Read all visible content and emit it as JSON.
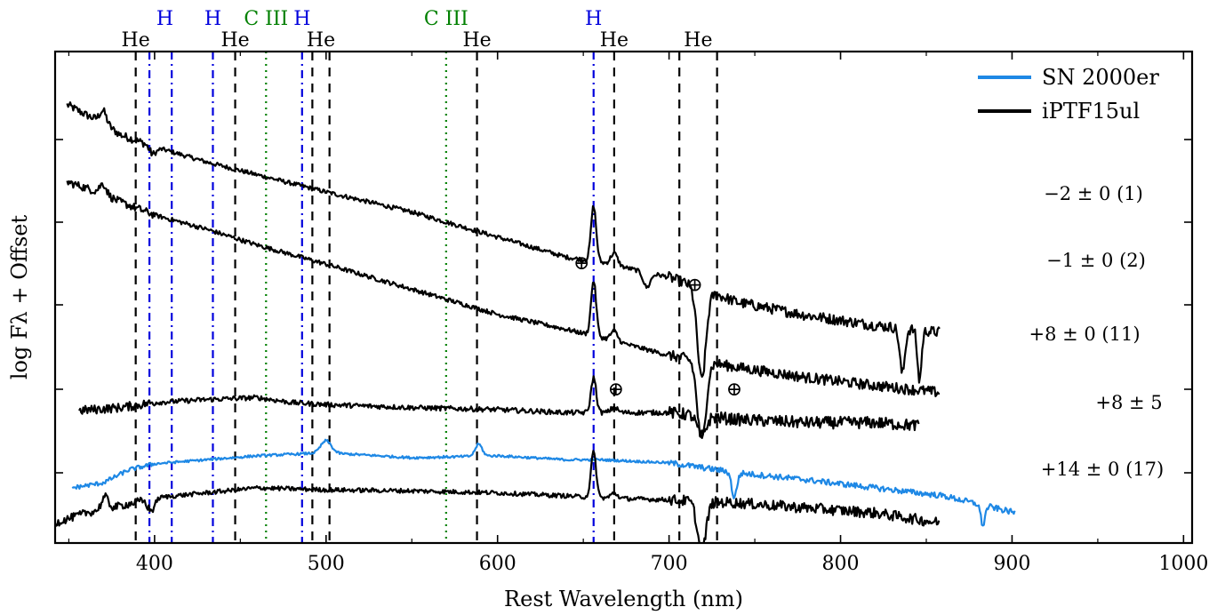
{
  "chart_data": {
    "type": "line",
    "xlabel": "Rest Wavelength (nm)",
    "ylabel": "log Fλ + Offset",
    "xlim": [
      342,
      1005
    ],
    "ylim": [
      -2.35,
      2.55
    ],
    "xticks": [
      400,
      500,
      600,
      700,
      800,
      900,
      1000
    ],
    "legend": {
      "placement": "top-right",
      "entries": [
        {
          "name": "SN 2000er",
          "color": "#1e88e5"
        },
        {
          "name": "iPTF15ul",
          "color": "#000000"
        }
      ]
    },
    "line_markers": [
      {
        "label": "He",
        "wavelength": 389,
        "style": "dashed",
        "color": "#000000"
      },
      {
        "label": "H",
        "wavelength": 397,
        "style": "dashdot",
        "color": "#0000dd"
      },
      {
        "label": "H",
        "wavelength": 410,
        "style": "dashdot",
        "color": "#0000dd"
      },
      {
        "label": "H",
        "wavelength": 434,
        "style": "dashdot",
        "color": "#0000dd"
      },
      {
        "label": "He",
        "wavelength": 447,
        "style": "dashed",
        "color": "#000000"
      },
      {
        "label": "C III",
        "wavelength": 465,
        "style": "dotted",
        "color": "#008000"
      },
      {
        "label": "H",
        "wavelength": 486,
        "style": "dashdot",
        "color": "#0000dd"
      },
      {
        "label": "He",
        "wavelength": 492,
        "style": "dashed",
        "color": "#000000"
      },
      {
        "label": "He",
        "wavelength": 502,
        "style": "dashed",
        "color": "#000000"
      },
      {
        "label": "C III",
        "wavelength": 570,
        "style": "dotted",
        "color": "#008000"
      },
      {
        "label": "He",
        "wavelength": 588,
        "style": "dashed",
        "color": "#000000"
      },
      {
        "label": "H",
        "wavelength": 656,
        "style": "dashdot",
        "color": "#0000dd"
      },
      {
        "label": "He",
        "wavelength": 668,
        "style": "dashed",
        "color": "#000000"
      },
      {
        "label": "He",
        "wavelength": 706,
        "style": "dashed",
        "color": "#000000"
      },
      {
        "label": "He",
        "wavelength": 728,
        "style": "dashed",
        "color": "#000000"
      }
    ],
    "marker_labels": [
      {
        "text": "He",
        "wavelength": 389,
        "tier": "low",
        "color": "#000000"
      },
      {
        "text": "H",
        "wavelength": 406,
        "tier": "high",
        "color": "#0000dd"
      },
      {
        "text": "H",
        "wavelength": 434,
        "tier": "high",
        "color": "#0000dd"
      },
      {
        "text": "He",
        "wavelength": 447,
        "tier": "low",
        "color": "#000000"
      },
      {
        "text": "C III",
        "wavelength": 465,
        "tier": "high",
        "color": "#008000"
      },
      {
        "text": "H",
        "wavelength": 486,
        "tier": "high",
        "color": "#0000dd"
      },
      {
        "text": "He",
        "wavelength": 497,
        "tier": "low",
        "color": "#000000"
      },
      {
        "text": "C III",
        "wavelength": 570,
        "tier": "high",
        "color": "#008000"
      },
      {
        "text": "He",
        "wavelength": 588,
        "tier": "low",
        "color": "#000000"
      },
      {
        "text": "H",
        "wavelength": 656,
        "tier": "high",
        "color": "#0000dd"
      },
      {
        "text": "He",
        "wavelength": 668,
        "tier": "low",
        "color": "#000000"
      },
      {
        "text": "He",
        "wavelength": 717,
        "tier": "low",
        "color": "#000000"
      }
    ],
    "telluric_symbol": "⊕",
    "telluric_marks": [
      {
        "wavelength": 649,
        "y": 0.38
      },
      {
        "wavelength": 715,
        "y": 0.16
      },
      {
        "wavelength": 669,
        "y": -0.88
      },
      {
        "wavelength": 738,
        "y": -0.88
      }
    ],
    "series": [
      {
        "name": "iPTF15ul",
        "label": "−2 ± 0 (1)",
        "color": "#000000",
        "noise": 0.022,
        "points": [
          [
            349,
            2.02
          ],
          [
            360,
            1.92
          ],
          [
            370,
            1.84
          ],
          [
            380,
            1.72
          ],
          [
            400,
            1.6
          ],
          [
            430,
            1.45
          ],
          [
            460,
            1.32
          ],
          [
            500,
            1.15
          ],
          [
            550,
            0.95
          ],
          [
            600,
            0.7
          ],
          [
            640,
            0.5
          ],
          [
            660,
            0.45
          ],
          [
            700,
            0.3
          ],
          [
            740,
            0.05
          ],
          [
            780,
            -0.08
          ],
          [
            820,
            -0.18
          ],
          [
            858,
            -0.25
          ]
        ],
        "features": [
          [
            370,
            0.12,
            2
          ],
          [
            399,
            -0.08,
            2
          ],
          [
            656,
            0.55,
            1.5
          ],
          [
            668,
            0.12,
            2
          ],
          [
            687,
            -0.15,
            2
          ],
          [
            719,
            -0.9,
            2.5
          ],
          [
            836,
            -0.45,
            1.5
          ],
          [
            846,
            -0.5,
            1.2
          ]
        ]
      },
      {
        "name": "iPTF15ul",
        "label": "−1 ± 0 (2)",
        "color": "#000000",
        "noise": 0.022,
        "points": [
          [
            349,
            1.25
          ],
          [
            360,
            1.19
          ],
          [
            370,
            1.13
          ],
          [
            380,
            1.05
          ],
          [
            400,
            0.92
          ],
          [
            430,
            0.78
          ],
          [
            460,
            0.62
          ],
          [
            500,
            0.43
          ],
          [
            550,
            0.18
          ],
          [
            600,
            -0.07
          ],
          [
            640,
            -0.22
          ],
          [
            660,
            -0.3
          ],
          [
            700,
            -0.48
          ],
          [
            740,
            -0.6
          ],
          [
            780,
            -0.7
          ],
          [
            820,
            -0.78
          ],
          [
            858,
            -0.85
          ]
        ],
        "features": [
          [
            370,
            0.1,
            2
          ],
          [
            656,
            0.55,
            1.5
          ],
          [
            668,
            0.1,
            2
          ],
          [
            719,
            -0.8,
            2.5
          ]
        ]
      },
      {
        "name": "iPTF15ul",
        "label": "+8 ± 0 (11)",
        "color": "#000000",
        "noise": 0.025,
        "points": [
          [
            356,
            -1.03
          ],
          [
            380,
            -1.0
          ],
          [
            400,
            -0.95
          ],
          [
            430,
            -0.92
          ],
          [
            460,
            -0.9
          ],
          [
            480,
            -0.95
          ],
          [
            500,
            -0.97
          ],
          [
            550,
            -1.0
          ],
          [
            600,
            -1.02
          ],
          [
            640,
            -1.05
          ],
          [
            660,
            -1.05
          ],
          [
            700,
            -1.05
          ],
          [
            740,
            -1.12
          ],
          [
            780,
            -1.15
          ],
          [
            820,
            -1.15
          ],
          [
            846,
            -1.18
          ]
        ],
        "features": [
          [
            656,
            0.35,
            1.5
          ],
          [
            668,
            0.05,
            2
          ],
          [
            719,
            -0.2,
            2.5
          ]
        ]
      },
      {
        "name": "SN 2000er",
        "label": "+8 ± 5",
        "color": "#1e88e5",
        "noise": 0.012,
        "points": [
          [
            352,
            -1.8
          ],
          [
            370,
            -1.75
          ],
          [
            385,
            -1.62
          ],
          [
            400,
            -1.56
          ],
          [
            430,
            -1.52
          ],
          [
            460,
            -1.48
          ],
          [
            500,
            -1.45
          ],
          [
            550,
            -1.5
          ],
          [
            600,
            -1.48
          ],
          [
            640,
            -1.52
          ],
          [
            660,
            -1.52
          ],
          [
            700,
            -1.55
          ],
          [
            740,
            -1.65
          ],
          [
            780,
            -1.72
          ],
          [
            820,
            -1.8
          ],
          [
            860,
            -1.88
          ],
          [
            902,
            -2.05
          ]
        ],
        "features": [
          [
            500,
            0.12,
            3
          ],
          [
            589,
            0.12,
            2
          ],
          [
            738,
            -0.25,
            1.5
          ],
          [
            883,
            -0.2,
            1.2
          ]
        ]
      },
      {
        "name": "iPTF15ul",
        "label": "+14 ± 0 (17)",
        "color": "#000000",
        "noise": 0.022,
        "points": [
          [
            342,
            -2.15
          ],
          [
            360,
            -2.05
          ],
          [
            375,
            -2.0
          ],
          [
            400,
            -1.9
          ],
          [
            430,
            -1.85
          ],
          [
            460,
            -1.8
          ],
          [
            500,
            -1.82
          ],
          [
            550,
            -1.83
          ],
          [
            600,
            -1.85
          ],
          [
            640,
            -1.88
          ],
          [
            660,
            -1.9
          ],
          [
            700,
            -1.92
          ],
          [
            740,
            -1.95
          ],
          [
            780,
            -2.0
          ],
          [
            820,
            -2.05
          ],
          [
            858,
            -2.15
          ]
        ],
        "features": [
          [
            371,
            0.12,
            2
          ],
          [
            398,
            -0.12,
            2
          ],
          [
            656,
            0.45,
            1.5
          ],
          [
            668,
            0.05,
            2
          ],
          [
            719,
            -0.5,
            2.5
          ]
        ]
      }
    ]
  }
}
